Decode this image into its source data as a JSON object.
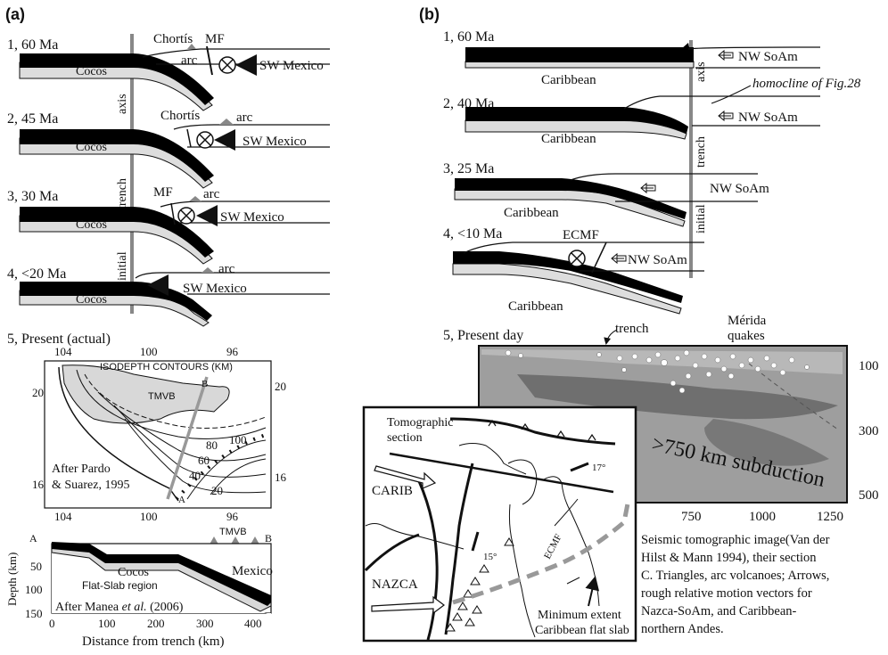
{
  "panel_a": {
    "label": "(a)",
    "stages": [
      {
        "label": "1, 60 Ma",
        "plate": "Cocos",
        "upper": [
          "Chortís",
          "MF",
          "arc",
          "SW Mexico"
        ]
      },
      {
        "label": "2, 45 Ma",
        "plate": "Cocos",
        "upper": [
          "Chortís",
          "arc",
          "SW Mexico"
        ]
      },
      {
        "label": "3, 30 Ma",
        "plate": "Cocos",
        "upper": [
          "MF",
          "arc",
          "SW Mexico"
        ]
      },
      {
        "label": "4, <20 Ma",
        "plate": "Cocos",
        "upper": [
          "arc",
          "SW Mexico"
        ]
      }
    ],
    "axis_words": [
      "axis",
      "trench",
      "initial"
    ],
    "present": {
      "label": "5, Present (actual)",
      "map": {
        "lon_ticks": [
          "104",
          "100",
          "96"
        ],
        "lat_ticks": [
          "20",
          "16"
        ],
        "title": "ISODEPTH CONTOURS (KM)",
        "tmvb": "TMVB",
        "contours": [
          "80",
          "100",
          "60",
          "40",
          "20"
        ],
        "profile_ends": [
          "A",
          "B"
        ],
        "credit_line1": "After Pardo",
        "credit_line2": "& Suarez, 1995"
      },
      "section": {
        "ends": [
          "A",
          "B"
        ],
        "tmvb": "TMVB",
        "labels": {
          "upper": "Mexico",
          "plate": "Cocos",
          "region": "Flat-Slab region"
        },
        "y_label": "Depth (km)",
        "y_ticks": [
          "50",
          "100",
          "150"
        ],
        "x_label": "Distance from trench (km)",
        "x_ticks": [
          "0",
          "100",
          "200",
          "300",
          "400"
        ],
        "credit_prefix": "After Manea ",
        "credit_etal": "et al.",
        "credit_suffix": " (2006)"
      }
    }
  },
  "panel_b": {
    "label": "(b)",
    "stages": [
      {
        "label": "1, 60 Ma",
        "plate": "Caribbean",
        "upper": "NW SoAm"
      },
      {
        "label": "2, 40 Ma",
        "plate": "Caribbean",
        "upper": "NW SoAm",
        "note": "homocline of Fig.28"
      },
      {
        "label": "3, 25 Ma",
        "plate": "Caribbean",
        "upper": "NW SoAm"
      },
      {
        "label": "4, <10 Ma",
        "plate": "Caribbean",
        "upper": "NW SoAm",
        "fault": "ECMF"
      }
    ],
    "axis_words": [
      "axis",
      "trench",
      "initial"
    ],
    "present": {
      "label": "5, Present day",
      "trench": "trench",
      "merida_line1": "Mérida",
      "merida_line2": "quakes",
      "tomo_text": ">750 km subduction",
      "depth_ticks": [
        "100",
        "300",
        "500"
      ],
      "dist_ticks": [
        "750",
        "1000",
        "1250"
      ],
      "map": {
        "section_line1": "Tomographic",
        "section_line2": "section",
        "carib": "CARIB",
        "nazca": "NAZCA",
        "fault": "ECMF",
        "angle1": "15°",
        "angle2": "17°",
        "extent_line1": "Minimum extent",
        "extent_line2": "Caribbean flat slab"
      }
    },
    "caption": [
      "Seismic tomographic image(Van der",
      "Hilst & Mann 1994), their section",
      "C. Triangles, arc volcanoes; Arrows,",
      "rough relative motion vectors for",
      "Nazca-SoAm, and Caribbean-",
      "northern Andes."
    ]
  }
}
